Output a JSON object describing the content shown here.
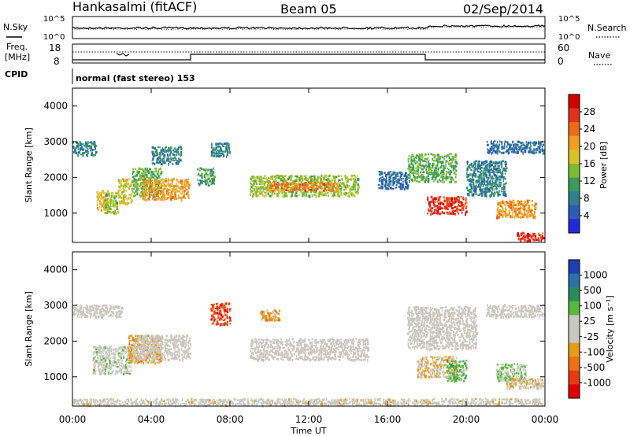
{
  "header": {
    "station": "Hankasalmi (fitACF)",
    "beam": "Beam 05",
    "date": "02/Sep/2014"
  },
  "aux": {
    "nsky_label": "N.Sky",
    "nsearch_label": "N.Search",
    "freq_label_line1": "Freq.",
    "freq_label_line2": "[MHz]",
    "nave_label": "Nave",
    "cpid_label": "CPID",
    "noise_ticks_left": [
      "10^5",
      "10^0"
    ],
    "noise_ticks_right": [
      "10^5",
      "10^0"
    ],
    "freq_ticks": [
      "18",
      "8"
    ],
    "nave_ticks": [
      "60",
      "0"
    ],
    "mode_text": "normal (fast stereo) 153"
  },
  "axes": {
    "xlabel": "Time UT",
    "ylabel": "Slant Range [km]",
    "xticks": [
      "00:00",
      "04:00",
      "08:00",
      "12:00",
      "16:00",
      "20:00",
      "00:00"
    ],
    "yticks": [
      "1000",
      "2000",
      "3000",
      "4000"
    ]
  },
  "power_colorbar": {
    "label": "Power [dB]",
    "ticks": [
      "4",
      "8",
      "12",
      "16",
      "20",
      "24",
      "28"
    ],
    "colors": [
      "#1f2bd9",
      "#2a5db5",
      "#2f7f8e",
      "#3a9a5a",
      "#7dbb33",
      "#d8c22a",
      "#f0a020",
      "#ef6a18",
      "#e3301a",
      "#d40000"
    ]
  },
  "velocity_colorbar": {
    "label": "Velocity [m s⁻¹]",
    "ticks": [
      "1000",
      "500",
      "100",
      "25",
      "-25",
      "-100",
      "-500",
      "-1000"
    ],
    "colors": [
      "#1f3fb0",
      "#2a72a8",
      "#2c8a5a",
      "#58b83a",
      "#c8c8c0",
      "#c8c8c0",
      "#e89a1a",
      "#ef6f14",
      "#e83a12",
      "#e00000"
    ]
  },
  "chart_data": [
    {
      "type": "heatmap",
      "name": "Power",
      "xlabel": "Time UT",
      "ylabel": "Slant Range [km]",
      "xlim_hours": [
        0,
        24
      ],
      "ylim_km": [
        180,
        4500
      ],
      "clim": [
        0,
        30
      ],
      "blobs": [
        {
          "t": [
            0.0,
            1.2
          ],
          "r": [
            2650,
            3050
          ],
          "v": 8
        },
        {
          "t": [
            1.2,
            1.8
          ],
          "r": [
            1100,
            1700
          ],
          "v": 18
        },
        {
          "t": [
            1.6,
            2.3
          ],
          "r": [
            1000,
            1600
          ],
          "v": 14
        },
        {
          "t": [
            2.3,
            3.0
          ],
          "r": [
            1300,
            2000
          ],
          "v": 16
        },
        {
          "t": [
            3.0,
            4.5
          ],
          "r": [
            1500,
            2300
          ],
          "v": 12
        },
        {
          "t": [
            3.5,
            5.9
          ],
          "r": [
            1400,
            2000
          ],
          "v": 20
        },
        {
          "t": [
            4.0,
            5.5
          ],
          "r": [
            2400,
            2900
          ],
          "v": 8
        },
        {
          "t": [
            6.3,
            7.2
          ],
          "r": [
            1800,
            2300
          ],
          "v": 10
        },
        {
          "t": [
            7.0,
            8.0
          ],
          "r": [
            2600,
            3000
          ],
          "v": 8
        },
        {
          "t": [
            9.0,
            14.5
          ],
          "r": [
            1500,
            2100
          ],
          "v": 14
        },
        {
          "t": [
            10.0,
            13.5
          ],
          "r": [
            1650,
            1900
          ],
          "v": 22
        },
        {
          "t": [
            15.5,
            17.0
          ],
          "r": [
            1700,
            2200
          ],
          "v": 6
        },
        {
          "t": [
            17.0,
            19.5
          ],
          "r": [
            1900,
            2700
          ],
          "v": 12
        },
        {
          "t": [
            18.0,
            20.0
          ],
          "r": [
            1000,
            1500
          ],
          "v": 26
        },
        {
          "t": [
            20.0,
            22.0
          ],
          "r": [
            1500,
            2500
          ],
          "v": 8
        },
        {
          "t": [
            21.5,
            23.5
          ],
          "r": [
            900,
            1400
          ],
          "v": 20
        },
        {
          "t": [
            21.0,
            24.0
          ],
          "r": [
            2700,
            3050
          ],
          "v": 6
        },
        {
          "t": [
            22.5,
            24.0
          ],
          "r": [
            250,
            500
          ],
          "v": 26
        }
      ]
    },
    {
      "type": "heatmap",
      "name": "Velocity",
      "xlabel": "Time UT",
      "ylabel": "Slant Range [km]",
      "xlim_hours": [
        0,
        24
      ],
      "ylim_km": [
        180,
        4500
      ],
      "clim": [
        -1000,
        1000
      ],
      "blobs": [
        {
          "t": [
            0.0,
            2.5
          ],
          "r": [
            2700,
            3050
          ],
          "v": 0
        },
        {
          "t": [
            1.0,
            3.0
          ],
          "r": [
            1100,
            1900
          ],
          "v": 80
        },
        {
          "t": [
            2.8,
            4.5
          ],
          "r": [
            1400,
            2200
          ],
          "v": -300
        },
        {
          "t": [
            3.0,
            6.0
          ],
          "r": [
            1500,
            2200
          ],
          "v": 0
        },
        {
          "t": [
            0.0,
            24.0
          ],
          "r": [
            180,
            420
          ],
          "v": -60
        },
        {
          "t": [
            7.0,
            8.0
          ],
          "r": [
            2500,
            3100
          ],
          "v": -700
        },
        {
          "t": [
            9.0,
            15.0
          ],
          "r": [
            1500,
            2100
          ],
          "v": 0
        },
        {
          "t": [
            9.5,
            10.5
          ],
          "r": [
            2600,
            2900
          ],
          "v": -300
        },
        {
          "t": [
            17.0,
            20.5
          ],
          "r": [
            1800,
            3000
          ],
          "v": 0
        },
        {
          "t": [
            17.5,
            19.5
          ],
          "r": [
            1000,
            1600
          ],
          "v": -200
        },
        {
          "t": [
            19.0,
            20.0
          ],
          "r": [
            900,
            1500
          ],
          "v": 300
        },
        {
          "t": [
            21.0,
            24.0
          ],
          "r": [
            2700,
            3050
          ],
          "v": 0
        },
        {
          "t": [
            21.5,
            23.0
          ],
          "r": [
            900,
            1400
          ],
          "v": 200
        },
        {
          "t": [
            22.0,
            24.0
          ],
          "r": [
            700,
            1000
          ],
          "v": -150
        }
      ]
    }
  ]
}
